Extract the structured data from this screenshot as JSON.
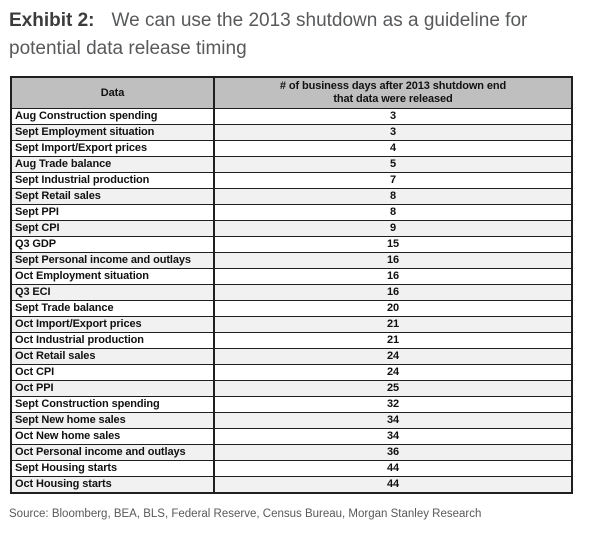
{
  "title": {
    "exhibit_label": "Exhibit 2:",
    "text": "We can use the 2013 shutdown as a guideline for potential data release timing"
  },
  "chart_data": {
    "type": "table",
    "title": "Exhibit 2: We can use the 2013 shutdown as a guideline for potential data release timing",
    "columns": [
      "Data",
      "# of business days after 2013 shutdown end\nthat data were released"
    ],
    "rows": [
      {
        "data": "Aug Construction spending",
        "days": 3
      },
      {
        "data": "Sept Employment situation",
        "days": 3
      },
      {
        "data": "Sept Import/Export prices",
        "days": 4
      },
      {
        "data": "Aug Trade balance",
        "days": 5
      },
      {
        "data": "Sept Industrial production",
        "days": 7
      },
      {
        "data": "Sept Retail sales",
        "days": 8
      },
      {
        "data": "Sept PPI",
        "days": 8
      },
      {
        "data": "Sept CPI",
        "days": 9
      },
      {
        "data": "Q3 GDP",
        "days": 15
      },
      {
        "data": "Sept Personal income and outlays",
        "days": 16
      },
      {
        "data": "Oct Employment situation",
        "days": 16
      },
      {
        "data": "Q3 ECI",
        "days": 16
      },
      {
        "data": "Sept Trade balance",
        "days": 20
      },
      {
        "data": "Oct Import/Export prices",
        "days": 21
      },
      {
        "data": "Oct Industrial production",
        "days": 21
      },
      {
        "data": "Oct Retail sales",
        "days": 24
      },
      {
        "data": "Oct CPI",
        "days": 24
      },
      {
        "data": "Oct PPI",
        "days": 25
      },
      {
        "data": "Sept Construction spending",
        "days": 32
      },
      {
        "data": "Sept New home sales",
        "days": 34
      },
      {
        "data": "Oct New home sales",
        "days": 34
      },
      {
        "data": "Oct Personal income and outlays",
        "days": 36
      },
      {
        "data": "Sept Housing starts",
        "days": 44
      },
      {
        "data": "Oct Housing starts",
        "days": 44
      }
    ]
  },
  "footer": {
    "source": "Source: Bloomberg, BEA, BLS, Federal Reserve, Census Bureau, Morgan Stanley Research"
  },
  "colors": {
    "header_bg": "#bfbfbf",
    "row_alt_bg": "#f1f1f1",
    "border": "#1f1f1f",
    "title_text": "#58595b",
    "exhibit_label_text": "#3c3c3c",
    "cell_text": "#111111",
    "source_text": "#595959"
  }
}
